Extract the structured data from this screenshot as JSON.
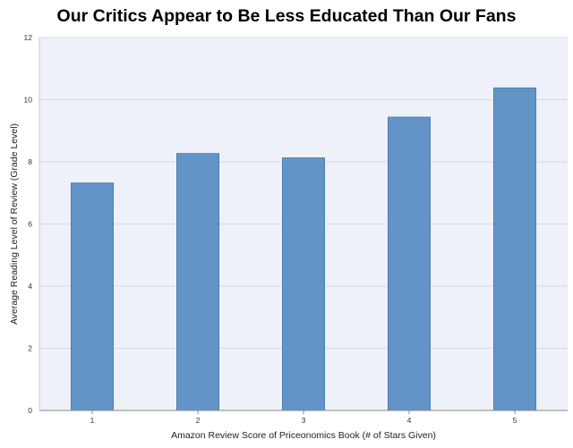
{
  "chart_data": {
    "type": "bar",
    "title": "Our Critics Appear to Be Less Educated Than Our Fans",
    "xlabel": "Amazon Review Score of Priceonomics Book (# of Stars Given)",
    "ylabel": "Average Reading Level of Review (Grade Level)",
    "categories": [
      "1",
      "2",
      "3",
      "4",
      "5"
    ],
    "values": [
      7.32,
      8.27,
      8.13,
      9.44,
      10.38
    ],
    "ylim": [
      0,
      12
    ],
    "yticks": [
      "0",
      "2",
      "4",
      "6",
      "8",
      "10",
      "12"
    ],
    "grid": true,
    "legend": "none",
    "colors": {
      "bar_fill": "#6294c8",
      "bar_stroke": "#4a78a8",
      "plot_background": "#eef0fa",
      "gridline": "#d8dbe6"
    }
  }
}
